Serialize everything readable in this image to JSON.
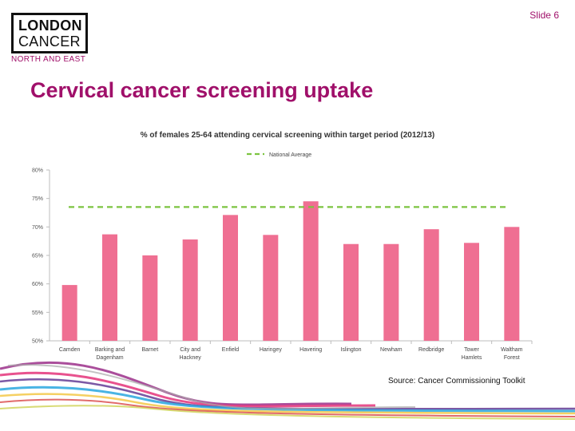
{
  "slide": {
    "number_label": "Slide 6"
  },
  "logo": {
    "line1": "LONDON",
    "line2": "CANCER",
    "subtitle": "NORTH AND EAST"
  },
  "page_title": "Cervical cancer screening uptake",
  "source": "Source: Cancer Commissioning Toolkit",
  "colors": {
    "bar": "#ef6f92",
    "average_line": "#7cc440",
    "title": "#a0106a",
    "axis": "#bdbdbd"
  },
  "chart_data": {
    "type": "bar",
    "title": "% of females 25-64 attending cervical screening within target period (2012/13)",
    "categories": [
      [
        "Camden"
      ],
      [
        "Barking and",
        "Dagenham"
      ],
      [
        "Barnet"
      ],
      [
        "City and",
        "Hackney"
      ],
      [
        "Enfield"
      ],
      [
        "Haringey"
      ],
      [
        "Havering"
      ],
      [
        "Islington"
      ],
      [
        "Newham"
      ],
      [
        "Redbridge"
      ],
      [
        "Tower",
        "Hamlets"
      ],
      [
        "Waltham",
        "Forest"
      ]
    ],
    "values": [
      59.8,
      68.7,
      65.0,
      67.8,
      72.1,
      68.6,
      74.5,
      67.0,
      67.0,
      69.6,
      67.2,
      70.0
    ],
    "reference_line": {
      "name": "National Average",
      "value": 73.5
    },
    "ylim": [
      50,
      80
    ],
    "yticks": [
      50,
      55,
      60,
      65,
      70,
      75,
      80
    ],
    "ytick_labels": [
      "50%",
      "55%",
      "60%",
      "65%",
      "70%",
      "75%",
      "80%"
    ],
    "legend_position": "top-center",
    "grid": false
  }
}
